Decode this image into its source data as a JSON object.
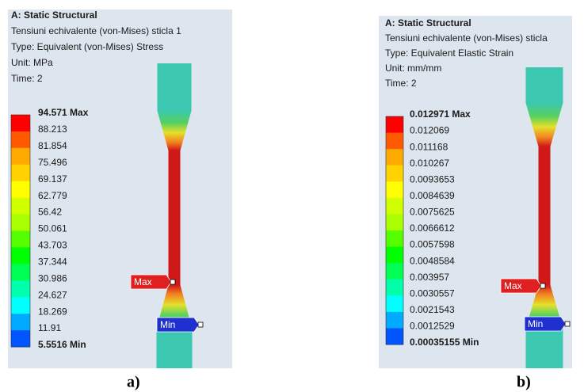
{
  "panels": [
    {
      "header": {
        "title": "A: Static Structural",
        "lines": [
          "Tensiuni echivalente (von-Mises) sticla 1",
          "Type: Equivalent (von-Mises) Stress",
          "Unit: MPa",
          "Time: 2"
        ]
      },
      "legend": [
        "94.571 Max",
        "88.213",
        "81.854",
        "75.496",
        "69.137",
        "62.779",
        "56.42",
        "50.061",
        "43.703",
        "37.344",
        "30.986",
        "24.627",
        "18.269",
        "11.91",
        "5.5516 Min"
      ],
      "tags": {
        "max": "Max",
        "min": "Min"
      },
      "caption": "a)"
    },
    {
      "header": {
        "title": "A: Static Structural",
        "lines": [
          "Tensiuni echivalente (von-Mises) sticla",
          "Type: Equivalent Elastic Strain",
          "Unit: mm/mm",
          "Time: 2"
        ]
      },
      "legend": [
        "0.012971 Max",
        "0.012069",
        "0.011168",
        "0.010267",
        "0.0093653",
        "0.0084639",
        "0.0075625",
        "0.0066612",
        "0.0057598",
        "0.0048584",
        "0.003957",
        "0.0030557",
        "0.0021543",
        "0.0012529",
        "0.00035155 Min"
      ],
      "tags": {
        "max": "Max",
        "min": "Min"
      },
      "caption": "b)"
    }
  ]
}
